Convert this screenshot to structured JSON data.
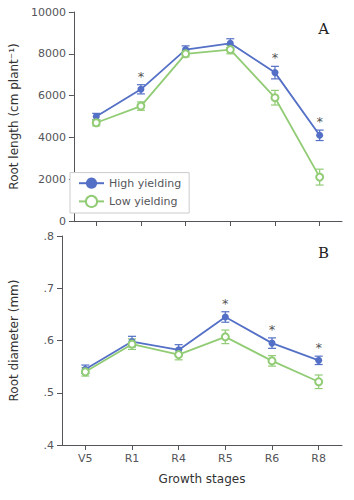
{
  "chart_data": [
    {
      "type": "line",
      "title": "A",
      "categories": [
        "V5",
        "R1",
        "R4",
        "R5",
        "R6",
        "R8"
      ],
      "series": [
        {
          "name": "High yielding",
          "marker": "filled_circle",
          "values": [
            5000,
            6300,
            8200,
            8500,
            7100,
            4100
          ],
          "errors": [
            150,
            220,
            180,
            220,
            300,
            250
          ]
        },
        {
          "name": "Low yielding",
          "marker": "open_circle",
          "values": [
            4700,
            5500,
            8000,
            8200,
            5900,
            2100
          ],
          "errors": [
            150,
            200,
            150,
            200,
            350,
            380
          ]
        }
      ],
      "ylabel": "Root length (cm plant⁻¹)",
      "ylim": [
        0,
        10000
      ],
      "yticks": [
        0,
        2000,
        4000,
        6000,
        8000,
        10000
      ],
      "annotations": [
        {
          "category": "R1",
          "text": "*"
        },
        {
          "category": "R6",
          "text": "*"
        },
        {
          "category": "R8",
          "text": "*"
        }
      ],
      "legend": "lower left",
      "grid": false,
      "tick_labels": "y"
    },
    {
      "type": "line",
      "title": "B",
      "categories": [
        "V5",
        "R1",
        "R4",
        "R5",
        "R6",
        "R8"
      ],
      "series": [
        {
          "name": "High yielding",
          "marker": "filled_circle",
          "values": [
            0.545,
            0.598,
            0.582,
            0.645,
            0.595,
            0.562
          ],
          "errors": [
            0.008,
            0.01,
            0.01,
            0.01,
            0.01,
            0.008
          ]
        },
        {
          "name": "Low yielding",
          "marker": "open_circle",
          "values": [
            0.54,
            0.593,
            0.573,
            0.607,
            0.561,
            0.521
          ],
          "errors": [
            0.008,
            0.01,
            0.01,
            0.013,
            0.01,
            0.013
          ]
        }
      ],
      "xlabel": "Growth stages",
      "ylabel": "Root diameter (mm)",
      "ylim": [
        0.4,
        0.8
      ],
      "yticks": [
        {
          "value": 0.4,
          "label": ".4"
        },
        {
          "value": 0.5,
          "label": ".5"
        },
        {
          "value": 0.6,
          "label": ".6"
        },
        {
          "value": 0.7,
          "label": ".7"
        },
        {
          "value": 0.8,
          "label": ".8"
        }
      ],
      "annotations": [
        {
          "category": "R5",
          "text": "*"
        },
        {
          "category": "R6",
          "text": "*"
        },
        {
          "category": "R8",
          "text": "*"
        }
      ],
      "grid": false
    }
  ]
}
